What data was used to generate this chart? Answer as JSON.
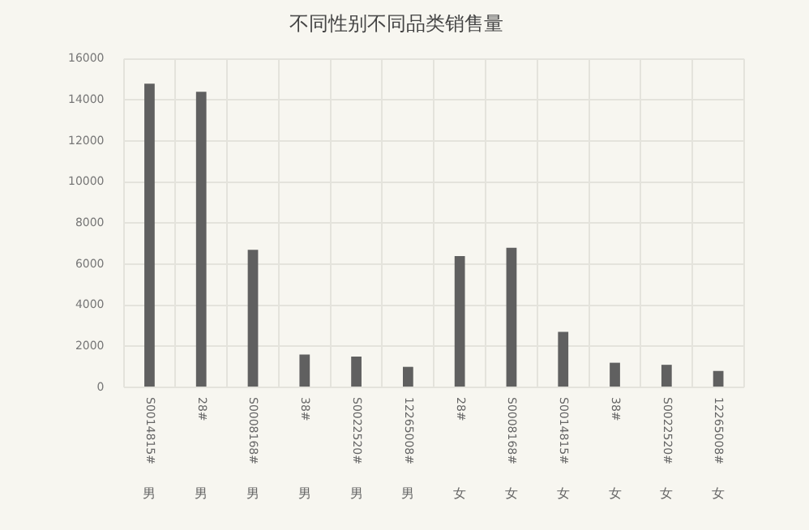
{
  "chart_data": {
    "type": "bar",
    "title": "不同性别不同品类销售量",
    "categories": [
      "S0014815# 男",
      "28# 男",
      "S0008168# 男",
      "38# 男",
      "S0022520# 男",
      "12265008# 男",
      "28# 女",
      "S0008168# 女",
      "S0014815# 女",
      "38# 女",
      "S0022520# 女",
      "12265008# 女"
    ],
    "values": [
      14800,
      14400,
      6700,
      1600,
      1500,
      1000,
      6400,
      6800,
      2700,
      1200,
      1100,
      800
    ],
    "color": "#606060",
    "ylim": [
      0,
      16000
    ],
    "yticks": [
      0,
      2000,
      4000,
      6000,
      8000,
      10000,
      12000,
      14000,
      16000
    ],
    "grid": true,
    "legend": false
  }
}
